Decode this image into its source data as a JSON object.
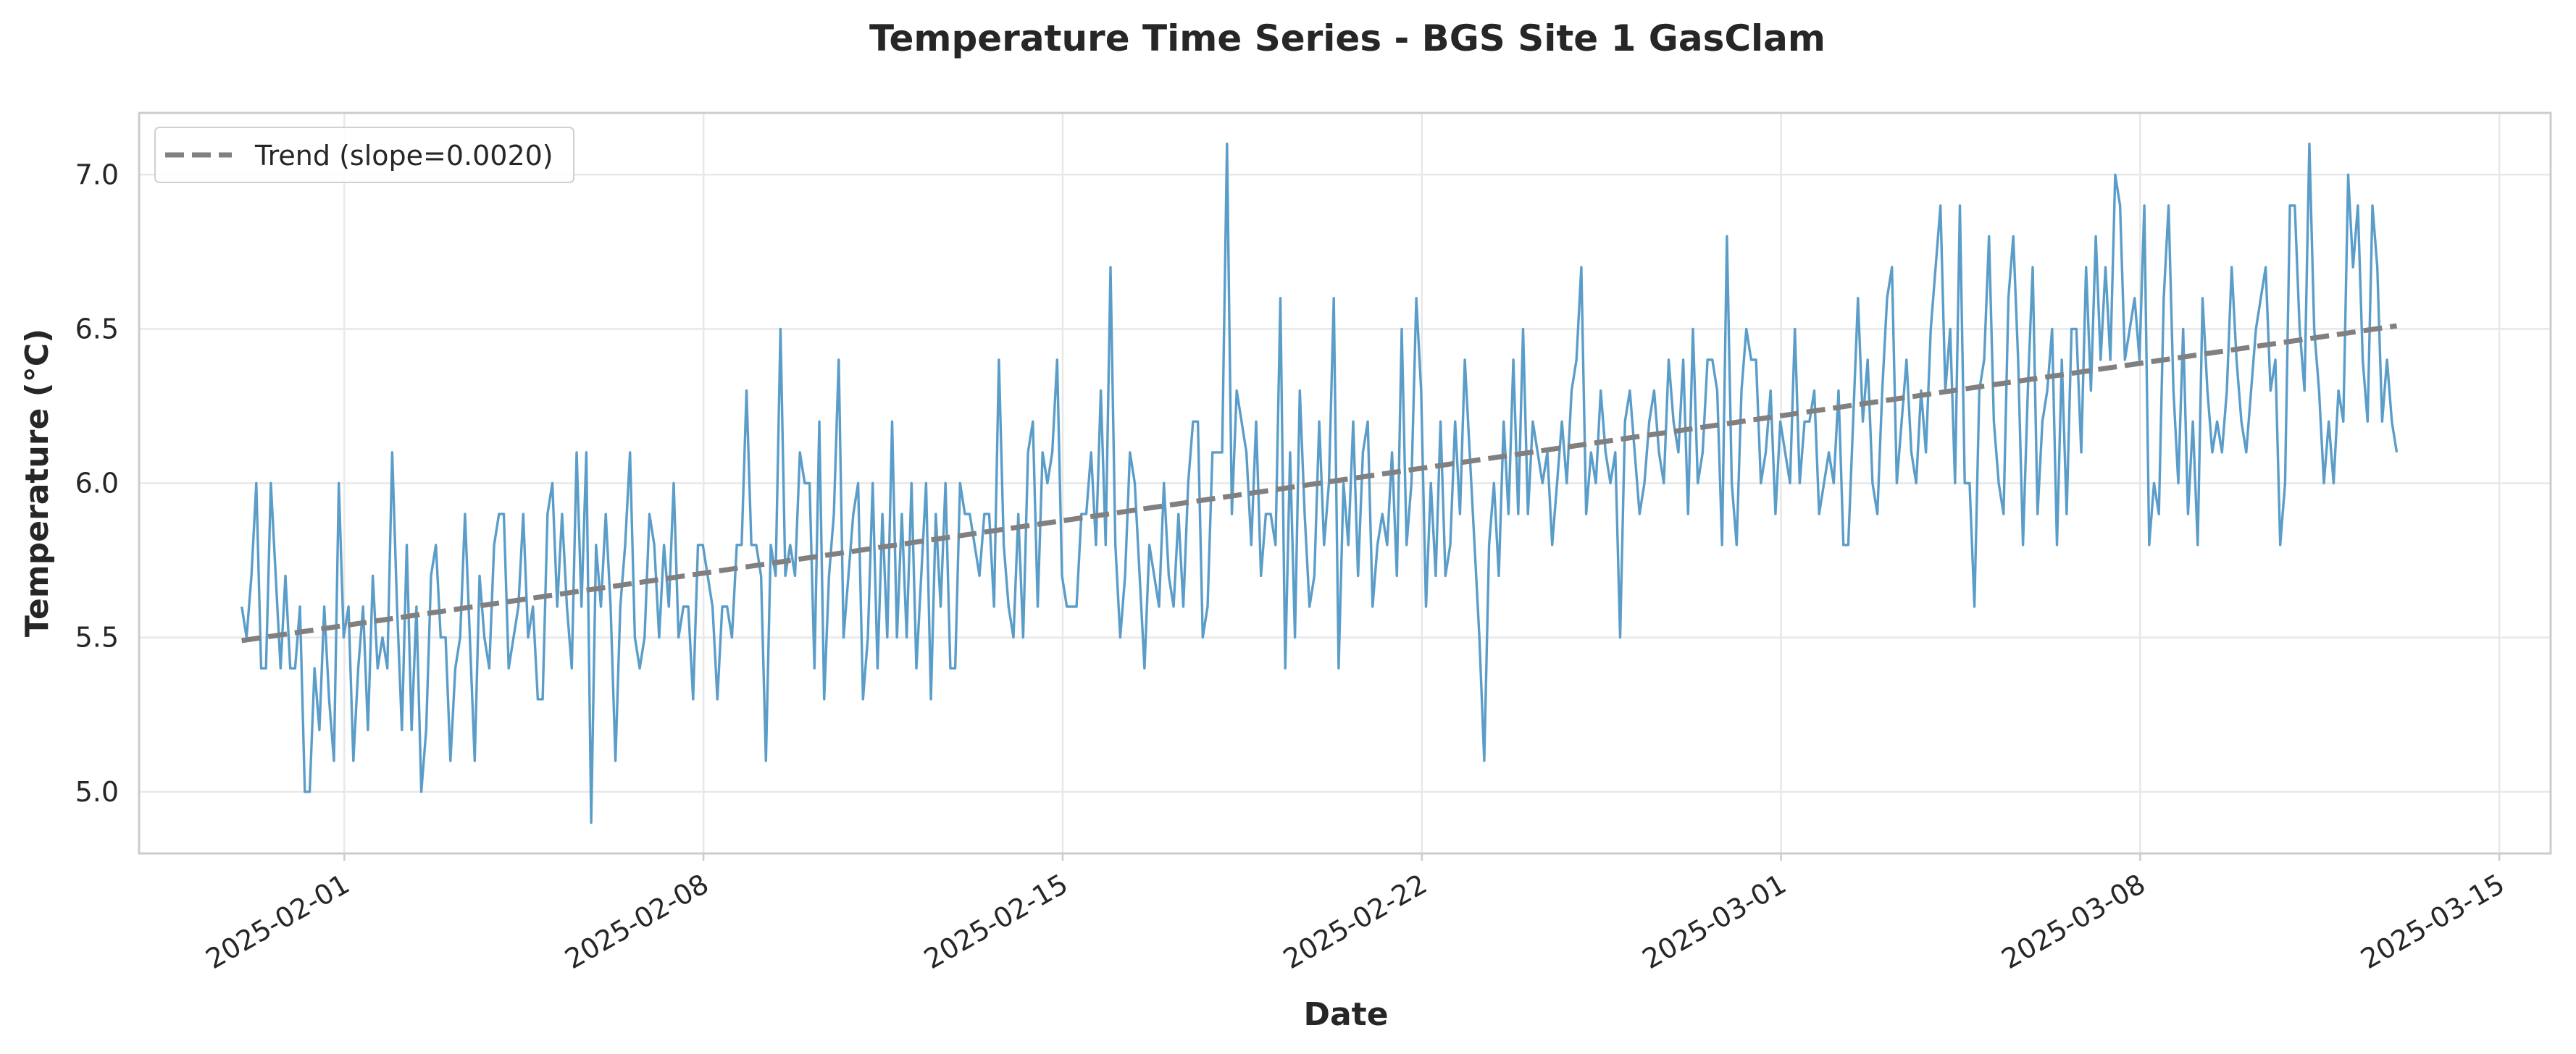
{
  "chart_data": {
    "type": "line",
    "title": "Temperature Time Series - BGS Site 1 GasClam",
    "xlabel": "Date",
    "ylabel": "Temperature (°C)",
    "xlim": [
      "2025-01-28T00:00",
      "2025-03-16T00:00"
    ],
    "ylim": [
      4.8,
      7.2
    ],
    "x_ticks": [
      "2025-02-01",
      "2025-02-08",
      "2025-02-15",
      "2025-02-22",
      "2025-03-01",
      "2025-03-08",
      "2025-03-15"
    ],
    "y_ticks": [
      5.0,
      5.5,
      6.0,
      6.5,
      7.0
    ],
    "y_tick_labels": [
      "5.0",
      "5.5",
      "6.0",
      "6.5",
      "7.0"
    ],
    "grid": true,
    "legend_position": "top-left",
    "series": [
      {
        "style": "solid",
        "color": "#5b9dc9",
        "x_start": "2025-01-30T00:00",
        "x_end": "2025-03-13T00:00",
        "values": [
          5.6,
          5.5,
          5.7,
          6.0,
          5.4,
          5.4,
          6.0,
          5.7,
          5.4,
          5.7,
          5.4,
          5.4,
          5.6,
          5.0,
          5.0,
          5.4,
          5.2,
          5.6,
          5.3,
          5.1,
          6.0,
          5.5,
          5.6,
          5.1,
          5.4,
          5.6,
          5.2,
          5.7,
          5.4,
          5.5,
          5.4,
          6.1,
          5.6,
          5.2,
          5.8,
          5.2,
          5.6,
          5.0,
          5.2,
          5.7,
          5.8,
          5.5,
          5.5,
          5.1,
          5.4,
          5.5,
          5.9,
          5.5,
          5.1,
          5.7,
          5.5,
          5.4,
          5.8,
          5.9,
          5.9,
          5.4,
          5.5,
          5.6,
          5.9,
          5.5,
          5.6,
          5.3,
          5.3,
          5.9,
          6.0,
          5.6,
          5.9,
          5.6,
          5.4,
          6.1,
          5.6,
          6.1,
          4.9,
          5.8,
          5.6,
          5.9,
          5.6,
          5.1,
          5.6,
          5.8,
          6.1,
          5.5,
          5.4,
          5.5,
          5.9,
          5.8,
          5.5,
          5.8,
          5.6,
          6.0,
          5.5,
          5.6,
          5.6,
          5.3,
          5.8,
          5.8,
          5.7,
          5.6,
          5.3,
          5.6,
          5.6,
          5.5,
          5.8,
          5.8,
          6.3,
          5.8,
          5.8,
          5.7,
          5.1,
          5.8,
          5.7,
          6.5,
          5.7,
          5.8,
          5.7,
          6.1,
          6.0,
          6.0,
          5.4,
          6.2,
          5.3,
          5.7,
          5.9,
          6.4,
          5.5,
          5.7,
          5.9,
          6.0,
          5.3,
          5.5,
          6.0,
          5.4,
          5.9,
          5.5,
          6.2,
          5.5,
          5.9,
          5.5,
          6.0,
          5.4,
          5.7,
          6.0,
          5.3,
          5.9,
          5.6,
          6.0,
          5.4,
          5.4,
          6.0,
          5.9,
          5.9,
          5.8,
          5.7,
          5.9,
          5.9,
          5.6,
          6.4,
          5.8,
          5.6,
          5.5,
          5.9,
          5.5,
          6.1,
          6.2,
          5.6,
          6.1,
          6.0,
          6.1,
          6.4,
          5.7,
          5.6,
          5.6,
          5.6,
          5.9,
          5.9,
          6.1,
          5.8,
          6.3,
          5.8,
          6.7,
          5.8,
          5.5,
          5.7,
          6.1,
          6.0,
          5.7,
          5.4,
          5.8,
          5.7,
          5.6,
          6.0,
          5.7,
          5.6,
          5.9,
          5.6,
          6.0,
          6.2,
          6.2,
          5.5,
          5.6,
          6.1,
          6.1,
          6.1,
          7.1,
          5.9,
          6.3,
          6.2,
          6.1,
          5.8,
          6.2,
          5.7,
          5.9,
          5.9,
          5.8,
          6.6,
          5.4,
          6.1,
          5.5,
          6.3,
          5.9,
          5.6,
          5.7,
          6.2,
          5.8,
          6.0,
          6.6,
          5.4,
          6.0,
          5.8,
          6.2,
          5.7,
          6.1,
          6.2,
          5.6,
          5.8,
          5.9,
          5.8,
          6.1,
          5.7,
          6.5,
          5.8,
          6.0,
          6.6,
          6.3,
          5.6,
          6.0,
          5.7,
          6.2,
          5.7,
          5.8,
          6.2,
          5.9,
          6.4,
          6.1,
          5.8,
          5.5,
          5.1,
          5.8,
          6.0,
          5.7,
          6.2,
          5.9,
          6.4,
          5.9,
          6.5,
          5.9,
          6.2,
          6.1,
          6.0,
          6.1,
          5.8,
          6.0,
          6.2,
          6.0,
          6.3,
          6.4,
          6.7,
          5.9,
          6.1,
          6.0,
          6.3,
          6.1,
          6.0,
          6.1,
          5.5,
          6.2,
          6.3,
          6.1,
          5.9,
          6.0,
          6.2,
          6.3,
          6.1,
          6.0,
          6.4,
          6.2,
          6.1,
          6.4,
          5.9,
          6.5,
          6.0,
          6.1,
          6.4,
          6.4,
          6.3,
          5.8,
          6.8,
          6.0,
          5.8,
          6.3,
          6.5,
          6.4,
          6.4,
          6.0,
          6.1,
          6.3,
          5.9,
          6.2,
          6.1,
          6.0,
          6.5,
          6.0,
          6.2,
          6.2,
          6.3,
          5.9,
          6.0,
          6.1,
          6.0,
          6.3,
          5.8,
          5.8,
          6.2,
          6.6,
          6.2,
          6.4,
          6.0,
          5.9,
          6.3,
          6.6,
          6.7,
          6.0,
          6.2,
          6.4,
          6.1,
          6.0,
          6.3,
          6.1,
          6.5,
          6.7,
          6.9,
          6.3,
          6.5,
          6.0,
          6.9,
          6.0,
          6.0,
          5.6,
          6.3,
          6.4,
          6.8,
          6.2,
          6.0,
          5.9,
          6.6,
          6.8,
          6.4,
          5.8,
          6.3,
          6.7,
          5.9,
          6.2,
          6.3,
          6.5,
          5.8,
          6.4,
          5.9,
          6.5,
          6.5,
          6.1,
          6.7,
          6.3,
          6.8,
          6.4,
          6.7,
          6.4,
          7.0,
          6.9,
          6.4,
          6.5,
          6.6,
          6.4,
          6.9,
          5.8,
          6.0,
          5.9,
          6.6,
          6.9,
          6.3,
          6.0,
          6.5,
          5.9,
          6.2,
          5.8,
          6.6,
          6.3,
          6.1,
          6.2,
          6.1,
          6.3,
          6.7,
          6.4,
          6.2,
          6.1,
          6.3,
          6.5,
          6.6,
          6.7,
          6.3,
          6.4,
          5.8,
          6.0,
          6.9,
          6.9,
          6.5,
          6.3,
          7.1,
          6.5,
          6.3,
          6.0,
          6.2,
          6.0,
          6.3,
          6.2,
          7.0,
          6.7,
          6.9,
          6.4,
          6.2,
          6.9,
          6.7,
          6.2,
          6.4,
          6.2,
          6.1
        ]
      },
      {
        "name": "Trend (slope=0.0020)",
        "style": "dashed",
        "color": "#808080",
        "x": [
          "2025-01-30T00:00",
          "2025-03-13T00:00"
        ],
        "y": [
          5.49,
          6.51
        ]
      }
    ]
  }
}
